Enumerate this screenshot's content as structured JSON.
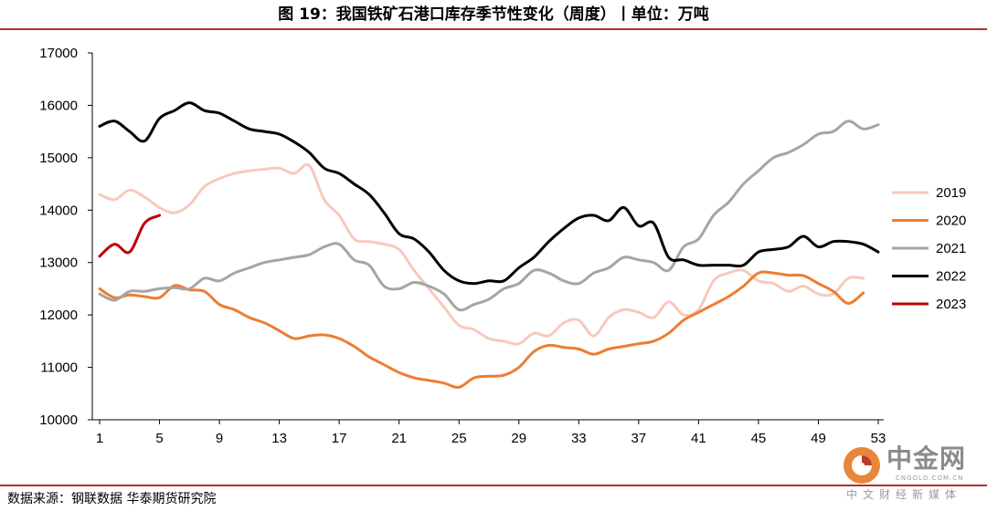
{
  "title": "图 19：我国铁矿石港口库存季节性变化（周度）丨单位：万吨",
  "source": "数据来源：钢联数据 华泰期货研究院",
  "watermark": {
    "name": "中金网",
    "domain": "CNGOLD.COM.CN",
    "tagline": "中文财经新媒体"
  },
  "colors": {
    "rule": "#b0312c",
    "2019": "#f7c9bd",
    "2020": "#ed7d31",
    "2021": "#a5a5a5",
    "2022": "#000000",
    "2023": "#c00000"
  },
  "chart_data": {
    "type": "line",
    "title": "",
    "xlabel": "",
    "ylabel": "",
    "xlim": [
      1,
      53
    ],
    "ylim": [
      10000,
      17000
    ],
    "x_ticks": [
      1,
      5,
      9,
      13,
      17,
      21,
      25,
      29,
      33,
      37,
      41,
      45,
      49,
      53
    ],
    "y_ticks": [
      10000,
      11000,
      12000,
      13000,
      14000,
      15000,
      16000,
      17000
    ],
    "grid": false,
    "legend_position": "right",
    "series": [
      {
        "name": "2019",
        "x": [
          1,
          2,
          3,
          4,
          5,
          6,
          7,
          8,
          9,
          10,
          11,
          12,
          13,
          14,
          15,
          16,
          17,
          18,
          19,
          20,
          21,
          22,
          23,
          24,
          25,
          26,
          27,
          28,
          29,
          30,
          31,
          32,
          33,
          34,
          35,
          36,
          37,
          38,
          39,
          40,
          41,
          42,
          43,
          44,
          45,
          46,
          47,
          48,
          49,
          50,
          51,
          52
        ],
        "values": [
          14300,
          14200,
          14380,
          14250,
          14050,
          13950,
          14100,
          14450,
          14600,
          14700,
          14750,
          14780,
          14800,
          14700,
          14850,
          14200,
          13900,
          13450,
          13400,
          13350,
          13250,
          12850,
          12500,
          12150,
          11800,
          11720,
          11550,
          11500,
          11450,
          11650,
          11600,
          11850,
          11900,
          11600,
          11950,
          12100,
          12050,
          11950,
          12250,
          12000,
          12100,
          12650,
          12800,
          12850,
          12650,
          12600,
          12450,
          12550,
          12400,
          12400,
          12700,
          12700
        ]
      },
      {
        "name": "2020",
        "x": [
          1,
          2,
          3,
          4,
          5,
          6,
          7,
          8,
          9,
          10,
          11,
          12,
          13,
          14,
          15,
          16,
          17,
          18,
          19,
          20,
          21,
          22,
          23,
          24,
          25,
          26,
          27,
          28,
          29,
          30,
          31,
          32,
          33,
          34,
          35,
          36,
          37,
          38,
          39,
          40,
          41,
          42,
          43,
          44,
          45,
          46,
          47,
          48,
          49,
          50,
          51,
          52
        ],
        "values": [
          12500,
          12330,
          12380,
          12350,
          12330,
          12560,
          12480,
          12450,
          12200,
          12100,
          11950,
          11850,
          11700,
          11550,
          11600,
          11620,
          11550,
          11400,
          11200,
          11050,
          10900,
          10800,
          10750,
          10700,
          10620,
          10800,
          10830,
          10850,
          11000,
          11300,
          11420,
          11380,
          11350,
          11250,
          11350,
          11400,
          11450,
          11500,
          11650,
          11900,
          12050,
          12200,
          12350,
          12550,
          12800,
          12800,
          12760,
          12750,
          12600,
          12450,
          12220,
          12420
        ]
      },
      {
        "name": "2021",
        "x": [
          1,
          2,
          3,
          4,
          5,
          6,
          7,
          8,
          9,
          10,
          11,
          12,
          13,
          14,
          15,
          16,
          17,
          18,
          19,
          20,
          21,
          22,
          23,
          24,
          25,
          26,
          27,
          28,
          29,
          30,
          31,
          32,
          33,
          34,
          35,
          36,
          37,
          38,
          39,
          40,
          41,
          42,
          43,
          44,
          45,
          46,
          47,
          48,
          49,
          50,
          51,
          52,
          53
        ],
        "values": [
          12400,
          12280,
          12450,
          12450,
          12500,
          12520,
          12500,
          12700,
          12650,
          12800,
          12900,
          13000,
          13050,
          13100,
          13150,
          13300,
          13350,
          13050,
          12950,
          12550,
          12500,
          12620,
          12550,
          12400,
          12100,
          12200,
          12300,
          12500,
          12600,
          12850,
          12800,
          12650,
          12600,
          12800,
          12900,
          13100,
          13050,
          13000,
          12850,
          13300,
          13450,
          13900,
          14150,
          14500,
          14750,
          15000,
          15100,
          15250,
          15450,
          15500,
          15700,
          15550,
          15630
        ]
      },
      {
        "name": "2022",
        "x": [
          1,
          2,
          3,
          4,
          5,
          6,
          7,
          8,
          9,
          10,
          11,
          12,
          13,
          14,
          15,
          16,
          17,
          18,
          19,
          20,
          21,
          22,
          23,
          24,
          25,
          26,
          27,
          28,
          29,
          30,
          31,
          32,
          33,
          34,
          35,
          36,
          37,
          38,
          39,
          40,
          41,
          42,
          43,
          44,
          45,
          46,
          47,
          48,
          49,
          50,
          51,
          52,
          53
        ],
        "values": [
          15600,
          15700,
          15500,
          15320,
          15750,
          15900,
          16050,
          15900,
          15850,
          15700,
          15550,
          15500,
          15450,
          15300,
          15100,
          14800,
          14700,
          14500,
          14300,
          13950,
          13550,
          13450,
          13200,
          12850,
          12650,
          12600,
          12650,
          12650,
          12900,
          13100,
          13400,
          13650,
          13850,
          13900,
          13800,
          14050,
          13700,
          13750,
          13100,
          13050,
          12950,
          12950,
          12950,
          12950,
          13200,
          13250,
          13300,
          13500,
          13300,
          13400,
          13400,
          13350,
          13200
        ]
      },
      {
        "name": "2023",
        "x": [
          1,
          2,
          3,
          4,
          5
        ],
        "values": [
          13120,
          13350,
          13200,
          13750,
          13900
        ]
      }
    ]
  }
}
